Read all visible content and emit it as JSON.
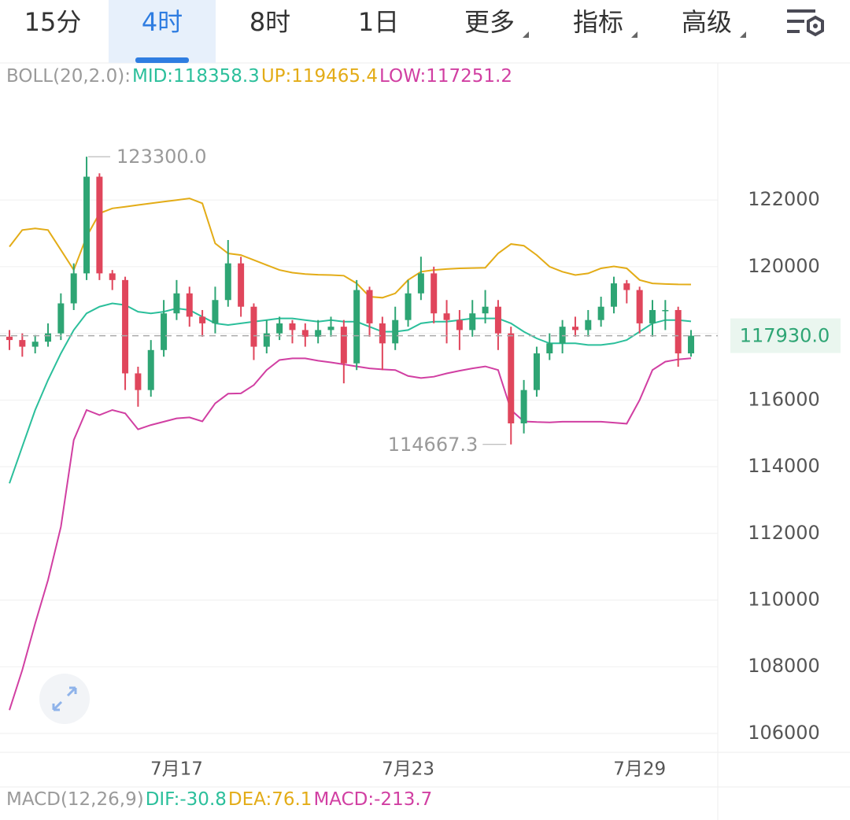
{
  "toolbar": {
    "tabs": [
      "15分",
      "4时",
      "8时",
      "1日",
      "更多",
      "指标",
      "高级"
    ],
    "active": 1,
    "dropdowns": [
      4,
      5,
      6
    ]
  },
  "chart_data": {
    "type": "candlestick",
    "indicator_label": "BOLL(20,2.0):",
    "categories": [
      null,
      null,
      null,
      null,
      null,
      null,
      null,
      null,
      null,
      null,
      null,
      null,
      null,
      "7月17",
      null,
      null,
      null,
      null,
      null,
      null,
      null,
      null,
      null,
      null,
      null,
      null,
      null,
      null,
      null,
      null,
      null,
      "7月23",
      null,
      null,
      null,
      null,
      null,
      null,
      null,
      null,
      null,
      null,
      null,
      null,
      null,
      null,
      null,
      null,
      null,
      "7月29",
      null,
      null,
      null,
      null
    ],
    "open": [
      117900,
      117800,
      117600,
      117750,
      118000,
      118900,
      119800,
      122700,
      119800,
      119600,
      116800,
      116300,
      117500,
      118600,
      119200,
      118500,
      118300,
      119000,
      120100,
      118800,
      117600,
      118000,
      118300,
      118100,
      117900,
      118100,
      118200,
      117100,
      119300,
      118300,
      117700,
      118400,
      119200,
      119800,
      118600,
      118400,
      118100,
      118600,
      118800,
      118000,
      115300,
      116300,
      117400,
      117700,
      118200,
      118100,
      118400,
      118800,
      119500,
      119300,
      118300,
      118700,
      118700,
      117400
    ],
    "high": [
      118100,
      118000,
      117950,
      118300,
      119200,
      120100,
      123300,
      122800,
      119900,
      119700,
      117000,
      117800,
      119000,
      119600,
      119400,
      118700,
      119400,
      120800,
      120300,
      118900,
      118400,
      118500,
      118400,
      118300,
      118400,
      118500,
      118400,
      119600,
      119400,
      118500,
      118800,
      119600,
      120300,
      120000,
      119000,
      118700,
      119000,
      119300,
      119000,
      118200,
      116600,
      117600,
      118000,
      118400,
      118500,
      118700,
      119100,
      119700,
      119600,
      119400,
      119000,
      119000,
      118800,
      118100
    ],
    "low": [
      117500,
      117300,
      117400,
      117600,
      117800,
      118700,
      119600,
      119600,
      119300,
      116300,
      115800,
      116100,
      117300,
      118400,
      118200,
      117900,
      118000,
      118800,
      118500,
      117200,
      117400,
      117800,
      117700,
      117600,
      117700,
      117900,
      116500,
      116900,
      117900,
      116900,
      117500,
      118200,
      119000,
      118300,
      117700,
      117500,
      117900,
      118300,
      117500,
      114667.3,
      115000,
      116100,
      117200,
      117400,
      117900,
      117900,
      118200,
      118600,
      118900,
      118000,
      117900,
      118100,
      117000,
      117300
    ],
    "close": [
      117800,
      117600,
      117750,
      118000,
      118900,
      119800,
      122700,
      119800,
      119600,
      116800,
      116300,
      117500,
      118600,
      119200,
      118500,
      118300,
      119000,
      120100,
      118800,
      117600,
      118000,
      118300,
      118100,
      117900,
      118100,
      118200,
      117100,
      119300,
      118300,
      117700,
      118400,
      119200,
      119800,
      118600,
      118400,
      118100,
      118600,
      118800,
      118000,
      115300,
      116300,
      117400,
      117700,
      118200,
      118100,
      118400,
      118800,
      119500,
      119300,
      118300,
      118700,
      118700,
      117400,
      117930
    ],
    "up_color": "#2ea574",
    "down_color": "#e0465c",
    "series": [
      {
        "name": "MID:118358.3",
        "color": "#2bbf9b",
        "values": [
          113500,
          114600,
          115700,
          116600,
          117400,
          118100,
          118600,
          118800,
          118900,
          118850,
          118650,
          118600,
          118650,
          118750,
          118700,
          118500,
          118300,
          118250,
          118300,
          118350,
          118400,
          118450,
          118450,
          118400,
          118350,
          118400,
          118350,
          118350,
          118200,
          118050,
          118050,
          118100,
          118300,
          118350,
          118350,
          118400,
          118450,
          118450,
          118450,
          118300,
          118050,
          117850,
          117700,
          117700,
          117700,
          117650,
          117650,
          117700,
          117800,
          118050,
          118300,
          118400,
          118400,
          118358.3
        ]
      },
      {
        "name": "UP:119465.4",
        "color": "#e3ac17",
        "values": [
          120600,
          121100,
          121150,
          121100,
          120500,
          119900,
          120900,
          121600,
          121750,
          121800,
          121850,
          121900,
          121950,
          122000,
          122050,
          121900,
          120700,
          120400,
          120350,
          120200,
          120050,
          119900,
          119820,
          119780,
          119760,
          119750,
          119730,
          119500,
          119100,
          119070,
          119200,
          119600,
          119850,
          119900,
          119930,
          119950,
          119960,
          119970,
          120400,
          120680,
          120630,
          120350,
          120000,
          119850,
          119750,
          119800,
          119950,
          120010,
          119950,
          119600,
          119500,
          119480,
          119470,
          119465.4
        ]
      },
      {
        "name": "LOW:117251.2",
        "color": "#d13fa2",
        "values": [
          106700,
          107900,
          109300,
          110600,
          112200,
          114800,
          115700,
          115550,
          115700,
          115600,
          115120,
          115250,
          115350,
          115450,
          115480,
          115360,
          115900,
          116190,
          116200,
          116450,
          116900,
          117200,
          117250,
          117250,
          117180,
          117130,
          117070,
          117010,
          116950,
          116920,
          116900,
          116720,
          116660,
          116700,
          116800,
          116880,
          116950,
          117010,
          116900,
          115700,
          115360,
          115340,
          115330,
          115350,
          115350,
          115350,
          115350,
          115320,
          115290,
          116000,
          116900,
          117150,
          117220,
          117251.2
        ]
      }
    ],
    "ylim": [
      105432,
      126112
    ],
    "yticks": [
      106000,
      108000,
      110000,
      112000,
      114000,
      116000,
      118000,
      120000,
      122000
    ],
    "grid": true,
    "last_price": {
      "value": 117930,
      "label": "117930.0"
    },
    "max_marker": {
      "value": 123300,
      "label": "123300.0",
      "index": 6
    },
    "min_marker": {
      "value": 114667.3,
      "label": "114667.3",
      "index": 39
    },
    "macd_legend": [
      {
        "text": "MACD(12,26,9)",
        "color": "#9a9a9a"
      },
      {
        "text": "DIF:-30.8",
        "color": "#2bbf9b"
      },
      {
        "text": "DEA:76.1",
        "color": "#e3ac17"
      },
      {
        "text": "MACD:-213.7",
        "color": "#d13fa2"
      }
    ]
  }
}
